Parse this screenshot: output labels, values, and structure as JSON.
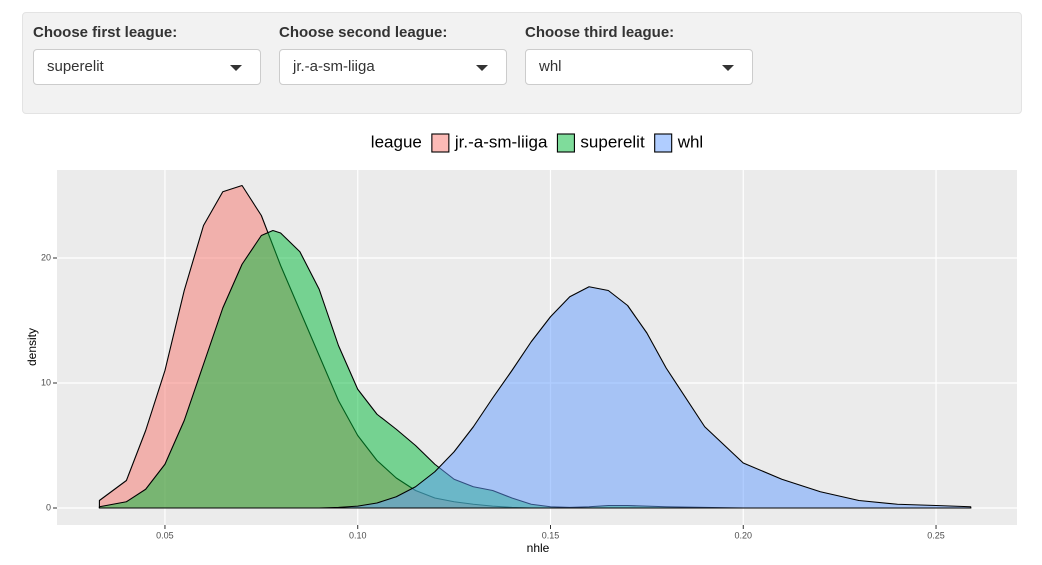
{
  "controls": [
    {
      "label": "Choose first league:",
      "value": "superelit"
    },
    {
      "label": "Choose second league:",
      "value": "jr.-a-sm-liiga"
    },
    {
      "label": "Choose third league:",
      "value": "whl"
    }
  ],
  "chart_data": {
    "type": "area",
    "x_label": "nhle",
    "y_label": "density",
    "legend_title": "league",
    "legend_position": "top",
    "grid": true,
    "xlim": [
      0.022,
      0.271
    ],
    "ylim": [
      -1.36,
      27.04
    ],
    "xticks": [
      0.05,
      {
        "value": 0.1,
        "label": "0.10"
      },
      0.15,
      {
        "value": 0.2,
        "label": "0.20"
      },
      0.25
    ],
    "yticks": [
      0,
      10,
      20
    ],
    "x": [
      0.033,
      0.04,
      0.045,
      0.05,
      0.055,
      0.06,
      0.065,
      0.07,
      0.075,
      0.078,
      0.08,
      0.085,
      0.09,
      0.095,
      0.1,
      0.105,
      0.11,
      0.115,
      0.12,
      0.125,
      0.13,
      0.135,
      0.14,
      0.145,
      0.15,
      0.155,
      0.16,
      0.165,
      0.17,
      0.175,
      0.18,
      0.19,
      0.2,
      0.21,
      0.22,
      0.23,
      0.24,
      0.25,
      0.259
    ],
    "series": [
      {
        "name": "jr.-a-sm-liiga",
        "color": "#F8766D",
        "values": [
          0.6,
          2.2,
          6.2,
          11,
          17.4,
          22.6,
          25.3,
          25.8,
          23.4,
          21,
          19.4,
          15.8,
          12.2,
          8.6,
          5.8,
          3.8,
          2.4,
          1.4,
          0.8,
          0.5,
          0.3,
          0.15,
          0.05,
          0,
          0,
          0,
          0,
          0,
          0,
          0,
          0,
          0,
          0,
          0,
          0,
          0,
          0,
          0,
          0
        ]
      },
      {
        "name": "superelit",
        "color": "#00BA38",
        "values": [
          0.1,
          0.5,
          1.5,
          3.5,
          7,
          11.5,
          16,
          19.5,
          21.8,
          22.2,
          22,
          20.5,
          17.5,
          13,
          9.5,
          7.5,
          6.3,
          5,
          3.5,
          2.3,
          1.7,
          1.4,
          0.8,
          0.3,
          0.1,
          0.05,
          0.1,
          0.2,
          0.2,
          0.15,
          0.1,
          0.05,
          0,
          0,
          0,
          0,
          0,
          0,
          0
        ]
      },
      {
        "name": "whl",
        "color": "#619CFF",
        "values": [
          0,
          0,
          0,
          0,
          0,
          0,
          0,
          0,
          0,
          0,
          0,
          0,
          0,
          0.05,
          0.15,
          0.4,
          0.9,
          1.7,
          2.9,
          4.5,
          6.5,
          8.8,
          11,
          13.3,
          15.3,
          16.9,
          17.7,
          17.4,
          16.2,
          14,
          11.2,
          6.5,
          3.6,
          2.3,
          1.3,
          0.6,
          0.3,
          0.2,
          0.1
        ]
      }
    ]
  }
}
